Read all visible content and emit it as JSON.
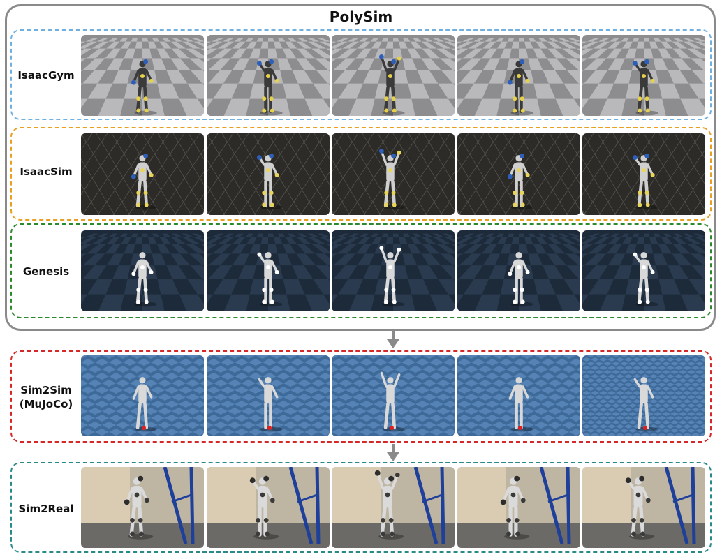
{
  "title": "PolySim",
  "rows": [
    {
      "label": "IsaacGym",
      "color": "#6fb0e0",
      "style": "gym"
    },
    {
      "label": "IsaacSim",
      "color": "#e8a020",
      "style": "isaacsim"
    },
    {
      "label": "Genesis",
      "color": "#2b8a2b",
      "style": "genesis"
    },
    {
      "label_line1": "Sim2Sim",
      "label_line2": "(MuJoCo)",
      "color": "#d62828",
      "style": "mujoco"
    },
    {
      "label": "Sim2Real",
      "color": "#2a8a8a",
      "style": "real"
    }
  ],
  "border_color": "#8a8a8a",
  "arrow_color": "#8a8a8a"
}
